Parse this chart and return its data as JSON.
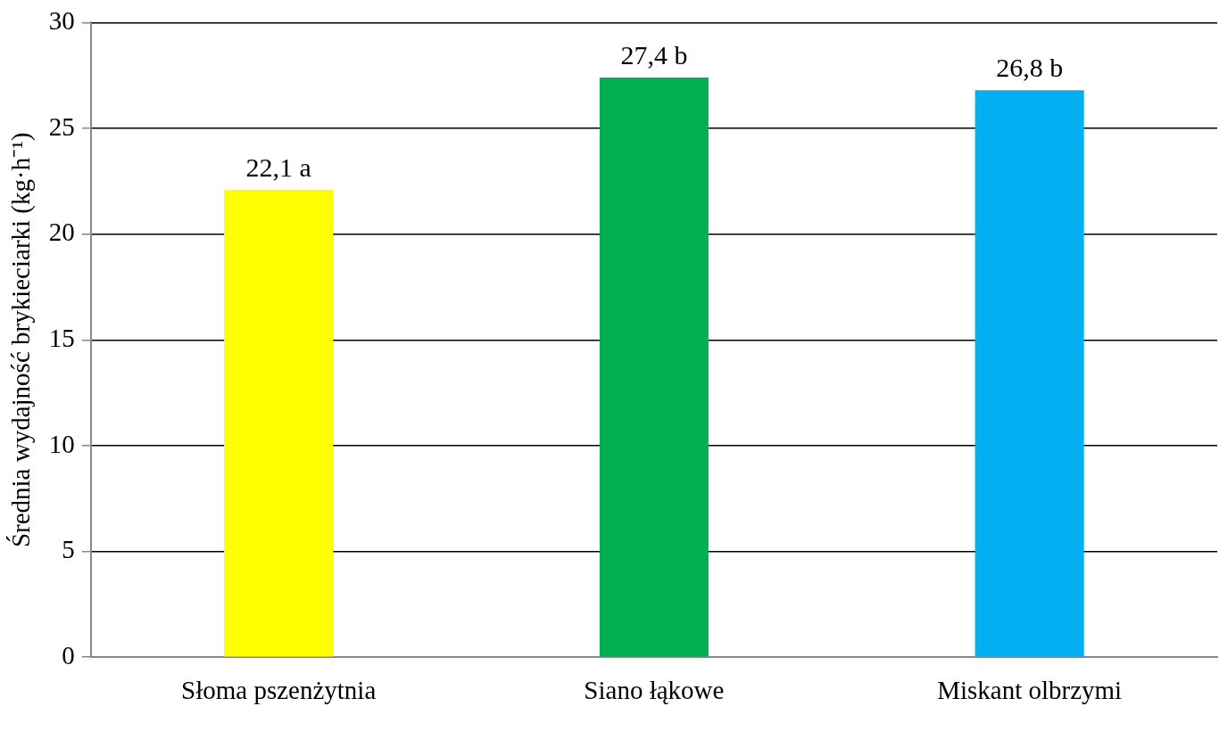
{
  "chart_data": {
    "type": "bar",
    "ylabel": "Średnia wydajność brykieciarki (kg·h⁻¹)",
    "categories": [
      "Słoma pszenżytnia",
      "Siano łąkowe",
      "Miskant olbrzymi"
    ],
    "values": [
      22.1,
      27.4,
      26.8
    ],
    "colors": [
      "#ffff00",
      "#00b050",
      "#00b0f0"
    ],
    "value_labels": [
      "22,1 a",
      "27,4 b",
      "26,8 b"
    ],
    "ylim": [
      0,
      30
    ],
    "yticks": [
      0,
      5,
      10,
      15,
      20,
      25,
      30
    ],
    "grid": "y",
    "legend": false
  }
}
